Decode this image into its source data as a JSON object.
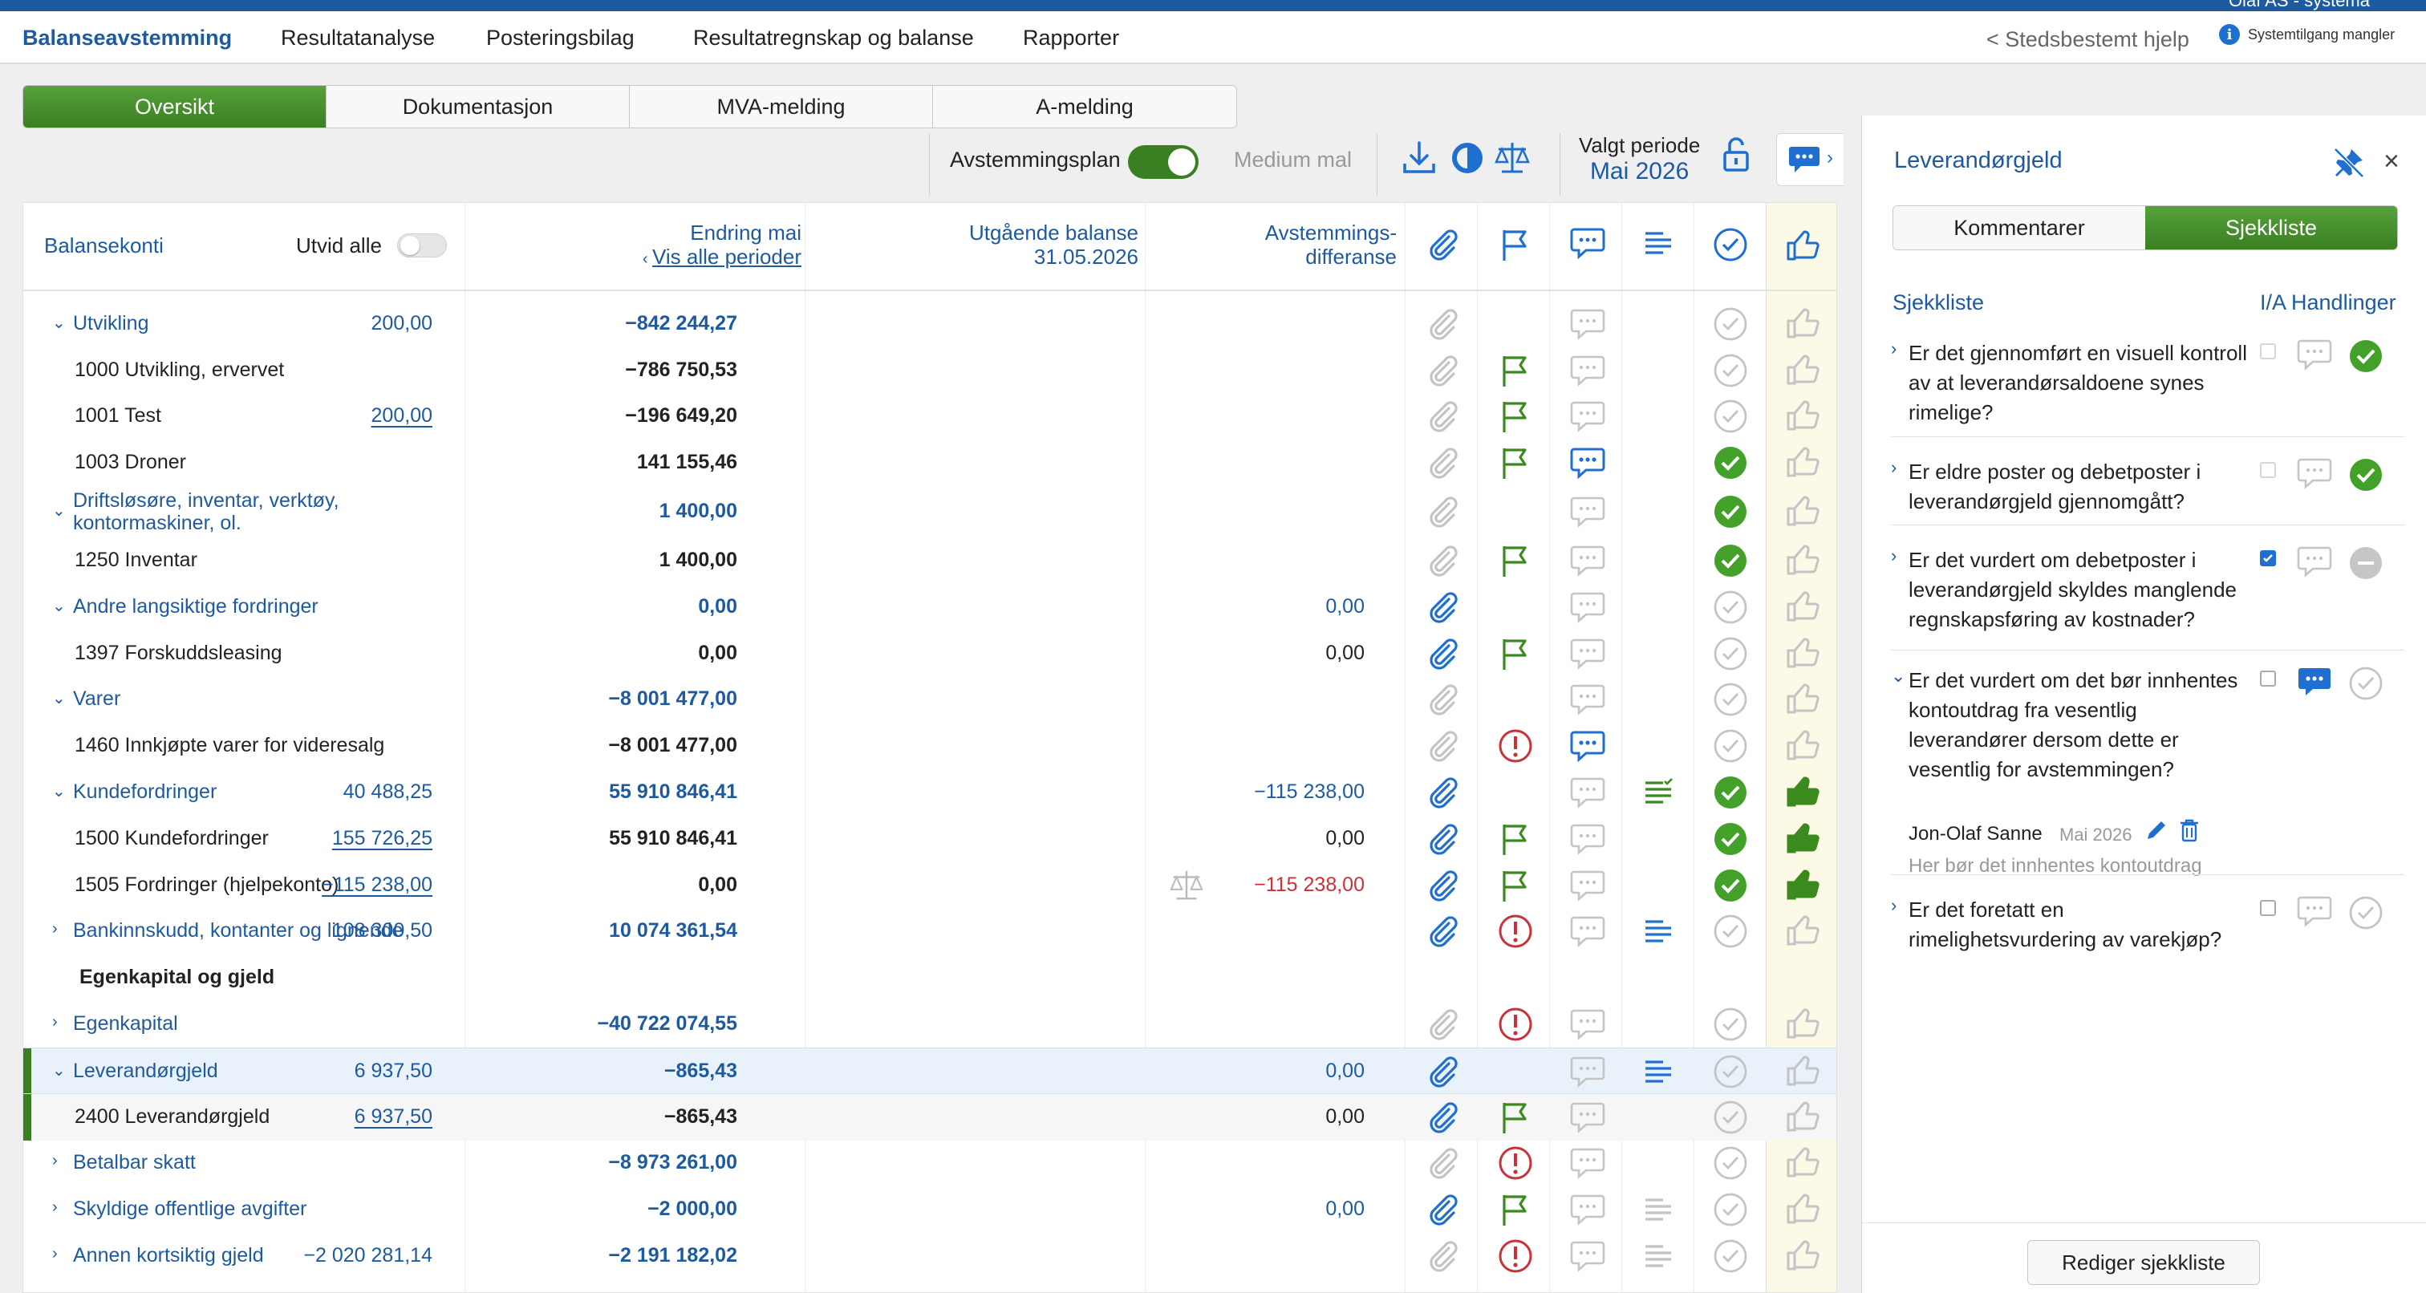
{
  "nav": {
    "items": [
      "Balanseavstemming",
      "Resultatanalyse",
      "Posteringsbilag",
      "Resultatregnskap og balanse",
      "Rapporter"
    ],
    "help": "< Stedsbestemt hjelp",
    "system": "Systemtilgang mangler",
    "user": "Olaf AS - systema"
  },
  "tabs": [
    "Oversikt",
    "Dokumentasjon",
    "MVA-melding",
    "A-melding"
  ],
  "toolbar": {
    "plan": "Avstemmingsplan",
    "template": "Medium mal",
    "period_label": "Valgt periode",
    "period_value": "Mai 2026"
  },
  "table": {
    "h_accounts": "Balansekonti",
    "h_expand": "Utvid alle",
    "h_change": "Endring mai",
    "h_all_periods": "Vis alle perioder",
    "h_balance": "Utgående balanse",
    "h_balance_date": "31.05.2026",
    "h_diff1": "Avstemmings-",
    "h_diff2": "differanse",
    "rows": [
      {
        "label": "Utvikling",
        "type": "grp",
        "open": true,
        "change": "200,00",
        "balance": "−842 244,27",
        "diff": "",
        "clip": "off",
        "flag": "",
        "chat": "off",
        "list": "",
        "check": "off",
        "thumb": "off"
      },
      {
        "label": "1000 Utvikling, ervervet",
        "type": "acc",
        "change": "",
        "balance": "−786 750,53",
        "diff": "",
        "clip": "off",
        "flag": "green",
        "chat": "off",
        "list": "",
        "check": "off",
        "thumb": "off"
      },
      {
        "label": "1001 Test",
        "type": "acc",
        "change": "200,00",
        "change_link": true,
        "balance": "−196 649,20",
        "diff": "",
        "clip": "off",
        "flag": "green",
        "chat": "off",
        "list": "",
        "check": "off",
        "thumb": "off"
      },
      {
        "label": "1003 Droner",
        "type": "acc",
        "change": "",
        "balance": "141 155,46",
        "diff": "",
        "clip": "off",
        "flag": "green",
        "chat": "blue",
        "list": "",
        "check": "green",
        "thumb": "off"
      },
      {
        "label": "Driftsløsøre, inventar, verktøy,",
        "label2": "kontormaskiner, ol.",
        "type": "grp",
        "open": true,
        "change": "",
        "balance": "1 400,00",
        "diff": "",
        "clip": "off",
        "flag": "",
        "chat": "off",
        "list": "",
        "check": "green",
        "thumb": "off"
      },
      {
        "label": "1250 Inventar",
        "type": "acc",
        "change": "",
        "balance": "1 400,00",
        "diff": "",
        "clip": "off",
        "flag": "green",
        "chat": "off",
        "list": "",
        "check": "green",
        "thumb": "off"
      },
      {
        "label": "Andre langsiktige fordringer",
        "type": "grp",
        "open": true,
        "change": "",
        "balance": "0,00",
        "diff": "0,00",
        "diffb": true,
        "clip": "on",
        "flag": "",
        "chat": "off",
        "list": "",
        "check": "off",
        "thumb": "off"
      },
      {
        "label": "1397 Forskuddsleasing",
        "type": "acc",
        "change": "",
        "balance": "0,00",
        "diff": "0,00",
        "clip": "on",
        "flag": "green",
        "chat": "off",
        "list": "",
        "check": "off",
        "thumb": "off"
      },
      {
        "label": "Varer",
        "type": "grp",
        "open": true,
        "change": "",
        "balance": "−8 001 477,00",
        "diff": "",
        "clip": "off",
        "flag": "",
        "chat": "off",
        "list": "",
        "check": "off",
        "thumb": "off"
      },
      {
        "label": "1460 Innkjøpte varer for videresalg",
        "type": "acc",
        "change": "",
        "balance": "−8 001 477,00",
        "diff": "",
        "clip": "off",
        "flag": "red",
        "chat": "blue",
        "list": "",
        "check": "off",
        "thumb": "off"
      },
      {
        "label": "Kundefordringer",
        "type": "grp",
        "open": true,
        "change": "40 488,25",
        "balance": "55 910 846,41",
        "diff": "−115 238,00",
        "diffb": true,
        "clip": "on",
        "flag": "",
        "chat": "off",
        "list": "green",
        "check": "green",
        "thumb": "green"
      },
      {
        "label": "1500 Kundefordringer",
        "type": "acc",
        "change": "155 726,25",
        "change_link": true,
        "balance": "55 910 846,41",
        "diff": "0,00",
        "clip": "on",
        "flag": "green",
        "chat": "off",
        "list": "",
        "check": "green",
        "thumb": "green"
      },
      {
        "label": "1505 Fordringer (hjelpekonto)",
        "type": "acc",
        "change": "−115 238,00",
        "change_link": true,
        "balance": "0,00",
        "diff": "−115 238,00",
        "diffred": true,
        "scale": true,
        "clip": "on",
        "flag": "green",
        "chat": "off",
        "list": "",
        "check": "green",
        "thumb": "green"
      },
      {
        "label": "Bankinnskudd, kontanter og lignende",
        "type": "grp",
        "open": false,
        "change": "108 300,50",
        "balance": "10 074 361,54",
        "diff": "",
        "clip": "on",
        "flag": "red",
        "chat": "off",
        "list": "blue",
        "check": "off",
        "thumb": "off"
      },
      {
        "label": "Egenkapital og gjeld",
        "type": "sect"
      },
      {
        "label": "Egenkapital",
        "type": "grp",
        "open": false,
        "change": "",
        "balance": "−40 722 074,55",
        "diff": "",
        "clip": "off",
        "flag": "red",
        "chat": "off",
        "list": "",
        "check": "off",
        "thumb": "off"
      },
      {
        "label": "Leverandørgjeld",
        "type": "grp",
        "open": true,
        "sel": true,
        "change": "6 937,50",
        "balance": "−865,43",
        "diff": "0,00",
        "diffb": true,
        "clip": "on",
        "flag": "",
        "chat": "off",
        "list": "blue",
        "check": "off",
        "thumb": "off"
      },
      {
        "label": "2400 Leverandørgjeld",
        "type": "acc",
        "subsel": true,
        "change": "6 937,50",
        "change_link": true,
        "balance": "−865,43",
        "diff": "0,00",
        "clip": "on",
        "flag": "green",
        "chat": "off",
        "list": "",
        "check": "off",
        "thumb": "off"
      },
      {
        "label": "Betalbar skatt",
        "type": "grp",
        "open": false,
        "change": "",
        "balance": "−8 973 261,00",
        "diff": "",
        "clip": "off",
        "flag": "red",
        "chat": "off",
        "list": "",
        "check": "off",
        "thumb": "off"
      },
      {
        "label": "Skyldige offentlige avgifter",
        "type": "grp",
        "open": false,
        "change": "",
        "balance": "−2 000,00",
        "diff": "0,00",
        "diffb": true,
        "clip": "on",
        "flag": "green",
        "chat": "off",
        "list": "off",
        "check": "off",
        "thumb": "off"
      },
      {
        "label": "Annen kortsiktig gjeld",
        "type": "grp",
        "open": false,
        "change": "−2 020 281,14",
        "balance": "−2 191 182,02",
        "diff": "",
        "clip": "off",
        "flag": "red",
        "chat": "off",
        "list": "off",
        "check": "off",
        "thumb": "off"
      }
    ]
  },
  "panel": {
    "title": "Leverandørgjeld",
    "tabs": [
      "Kommentarer",
      "Sjekkliste"
    ],
    "h_list": "Sjekkliste",
    "h_actions": "I/A Handlinger",
    "questions": [
      {
        "text": "Er det gjennomført en visuell kontroll av at leverandørsaldoene synes rimelige?",
        "cb": "dis",
        "chat": "off",
        "status": "ok"
      },
      {
        "text": "Er eldre poster og debetposter i leverandørgjeld gjennomgått?",
        "cb": "dis",
        "chat": "off",
        "status": "ok"
      },
      {
        "text": "Er det vurdert om debetposter i leverandørgjeld skyldes manglende regnskapsføring av kostnader?",
        "cb": "on",
        "chat": "off",
        "status": "na"
      },
      {
        "text": "Er det vurdert om det bør innhentes kontoutdrag fra vesentlig leverandører dersom dette er vesentlig for avstemmingen?",
        "cb": "off",
        "chat": "blue",
        "status": "off",
        "open": true,
        "comment_author": "Jon-Olaf Sanne",
        "comment_date": "Mai 2026",
        "comment_text": "Her bør det innhentes kontoutdrag"
      },
      {
        "text": "Er det foretatt en rimelighetsvurdering av varekjøp?",
        "cb": "off",
        "chat": "off",
        "status": "off"
      }
    ],
    "edit_button": "Rediger sjekkliste"
  },
  "colors": {
    "primary": "#1e5aa0",
    "green": "#3a7f22",
    "check_green": "#43a028",
    "red": "#c8333a",
    "highlight": "#fdf9e7"
  }
}
